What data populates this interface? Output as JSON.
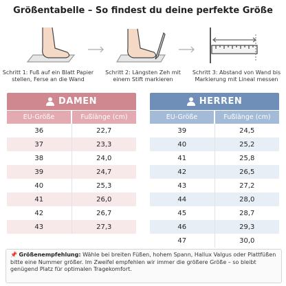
{
  "header": {
    "title": "Größentabelle – So findest du deine perfekte Größe"
  },
  "steps": [
    "Schritt 1: Fuß auf ein Blatt Papier stellen, Ferse an die Wand",
    "Schritt 2: Längsten Zeh mit einem Stift markieren",
    "Schritt 3: Abstand von Wand bis Markierung mit Lineal messen"
  ],
  "tables": [
    {
      "title": "DAMEN",
      "columns": [
        "EU-Größe",
        "Fußlänge (cm)"
      ],
      "rows": [
        [
          "36",
          "22,7"
        ],
        [
          "37",
          "23,3"
        ],
        [
          "38",
          "24,0"
        ],
        [
          "39",
          "24,7"
        ],
        [
          "40",
          "25,3"
        ],
        [
          "41",
          "26,0"
        ],
        [
          "42",
          "26,7"
        ],
        [
          "43",
          "27,3"
        ]
      ]
    },
    {
      "title": "HERREN",
      "columns": [
        "EU-Größe",
        "Fußlänge (cm)"
      ],
      "rows": [
        [
          "39",
          "24,5"
        ],
        [
          "40",
          "25,2"
        ],
        [
          "41",
          "25,8"
        ],
        [
          "42",
          "26,5"
        ],
        [
          "43",
          "27,2"
        ],
        [
          "44",
          "28,0"
        ],
        [
          "45",
          "28,7"
        ],
        [
          "46",
          "29,3"
        ],
        [
          "47",
          "30,0"
        ]
      ]
    }
  ],
  "note": {
    "label": "Größenempfehlung:",
    "text": "Wähle bei breiten Füßen, hohem Spann, Hallux Valgus oder Plattfüßen bitte eine Nummer größer. Im Zweifel empfehlen wir immer die größere Größe – so bleibt genügend Platz für optimalen Tragekomfort."
  }
}
